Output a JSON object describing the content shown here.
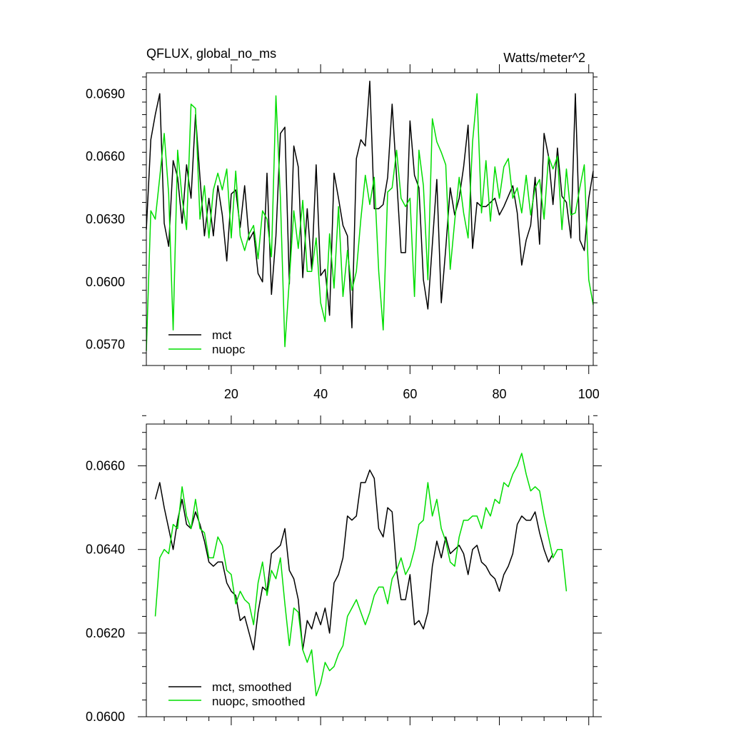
{
  "colors": {
    "mct": "#000000",
    "nuopc": "#00dd00",
    "background": "#ffffff"
  },
  "chart_data": [
    {
      "type": "line",
      "title": "QFLUX, global_no_ms",
      "units": "Watts/meter^2",
      "xlim": [
        1,
        101
      ],
      "ylim": [
        0.056,
        0.07
      ],
      "xticks": [
        20,
        40,
        60,
        80,
        100
      ],
      "yticks": [
        0.057,
        0.06,
        0.063,
        0.066,
        0.069
      ],
      "ytick_labels": [
        "0.0570",
        "0.0600",
        "0.0630",
        "0.0660",
        "0.0690"
      ],
      "legend_position": "bottom-left",
      "series": [
        {
          "name": "mct",
          "color": "#000000",
          "x_start": 1,
          "values": [
            0.0625,
            0.0668,
            0.068,
            0.069,
            0.0628,
            0.0617,
            0.0658,
            0.065,
            0.0628,
            0.0656,
            0.064,
            0.068,
            0.065,
            0.0622,
            0.064,
            0.0622,
            0.0646,
            0.0632,
            0.061,
            0.0642,
            0.0644,
            0.0626,
            0.0646,
            0.062,
            0.0624,
            0.0604,
            0.06,
            0.0652,
            0.0594,
            0.0622,
            0.0671,
            0.0674,
            0.0599,
            0.0665,
            0.0655,
            0.0602,
            0.0635,
            0.0606,
            0.0656,
            0.0603,
            0.0606,
            0.0584,
            0.0652,
            0.064,
            0.0627,
            0.0622,
            0.0578,
            0.0659,
            0.0668,
            0.0665,
            0.0696,
            0.0635,
            0.0635,
            0.0637,
            0.065,
            0.0685,
            0.065,
            0.0614,
            0.0614,
            0.0677,
            0.0651,
            0.0645,
            0.0601,
            0.0587,
            0.0618,
            0.0649,
            0.059,
            0.0616,
            0.0645,
            0.0632,
            0.064,
            0.0655,
            0.0675,
            0.0616,
            0.0638,
            0.0636,
            0.0636,
            0.0638,
            0.064,
            0.0632,
            0.0636,
            0.0641,
            0.0646,
            0.0633,
            0.0608,
            0.062,
            0.0627,
            0.065,
            0.0618,
            0.0671,
            0.066,
            0.0637,
            0.0664,
            0.0641,
            0.0638,
            0.0621,
            0.069,
            0.062,
            0.0615,
            0.064,
            0.0653
          ]
        },
        {
          "name": "nuopc",
          "color": "#00dd00",
          "x_start": 1,
          "values": [
            0.0567,
            0.0634,
            0.063,
            0.065,
            0.0671,
            0.0642,
            0.0577,
            0.0663,
            0.064,
            0.0625,
            0.0685,
            0.0683,
            0.063,
            0.0646,
            0.0621,
            0.0644,
            0.0652,
            0.0644,
            0.0654,
            0.0621,
            0.0653,
            0.0622,
            0.0615,
            0.0623,
            0.0627,
            0.0611,
            0.0634,
            0.063,
            0.0612,
            0.0689,
            0.064,
            0.0569,
            0.0601,
            0.0634,
            0.0616,
            0.0639,
            0.0605,
            0.0605,
            0.0621,
            0.059,
            0.0581,
            0.0623,
            0.0597,
            0.0636,
            0.0593,
            0.0615,
            0.0596,
            0.0605,
            0.063,
            0.0651,
            0.0637,
            0.065,
            0.0605,
            0.0577,
            0.0643,
            0.0645,
            0.0663,
            0.064,
            0.0636,
            0.064,
            0.0593,
            0.0663,
            0.0646,
            0.0601,
            0.0678,
            0.0667,
            0.0662,
            0.0656,
            0.0606,
            0.0629,
            0.065,
            0.0633,
            0.0621,
            0.0667,
            0.069,
            0.0633,
            0.0658,
            0.0629,
            0.0655,
            0.064,
            0.0655,
            0.0659,
            0.064,
            0.0645,
            0.0633,
            0.0651,
            0.0632,
            0.0645,
            0.0649,
            0.063,
            0.066,
            0.0654,
            0.066,
            0.0625,
            0.0654,
            0.0632,
            0.0633,
            0.0645,
            0.0656,
            0.0601,
            0.0589
          ]
        }
      ]
    },
    {
      "type": "line",
      "title": "",
      "xlim": [
        1,
        101
      ],
      "ylim": [
        0.06,
        0.067
      ],
      "xticks": [
        20,
        40,
        60,
        80,
        100
      ],
      "yticks": [
        0.06,
        0.062,
        0.064,
        0.066
      ],
      "ytick_labels": [
        "0.0600",
        "0.0620",
        "0.0640",
        "0.0660"
      ],
      "legend_position": "bottom-left",
      "series": [
        {
          "name": "mct, smoothed",
          "color": "#000000",
          "x_start": 3,
          "values": [
            0.0652,
            0.0656,
            0.065,
            0.0645,
            0.064,
            0.0647,
            0.0652,
            0.0646,
            0.0645,
            0.0649,
            0.0646,
            0.0642,
            0.0637,
            0.0636,
            0.0637,
            0.0637,
            0.0632,
            0.063,
            0.0629,
            0.0623,
            0.0624,
            0.062,
            0.0616,
            0.0625,
            0.0631,
            0.063,
            0.0639,
            0.064,
            0.0641,
            0.0645,
            0.0635,
            0.0633,
            0.0628,
            0.0616,
            0.0623,
            0.0621,
            0.0625,
            0.0622,
            0.0626,
            0.062,
            0.0632,
            0.0634,
            0.0638,
            0.0648,
            0.0647,
            0.0648,
            0.0656,
            0.0656,
            0.0659,
            0.0657,
            0.0645,
            0.0643,
            0.065,
            0.0649,
            0.0635,
            0.0628,
            0.0628,
            0.0634,
            0.0622,
            0.0623,
            0.0621,
            0.0625,
            0.0636,
            0.0642,
            0.0638,
            0.0643,
            0.0639,
            0.064,
            0.0641,
            0.0639,
            0.0634,
            0.064,
            0.0641,
            0.0637,
            0.0636,
            0.0634,
            0.0633,
            0.063,
            0.0634,
            0.0636,
            0.0639,
            0.0646,
            0.0648,
            0.0647,
            0.0647,
            0.0649,
            0.0644,
            0.064,
            0.0637,
            0.0639
          ]
        },
        {
          "name": "nuopc, smoothed",
          "color": "#00dd00",
          "x_start": 3,
          "values": [
            0.0624,
            0.0638,
            0.064,
            0.0639,
            0.0646,
            0.0645,
            0.0655,
            0.0648,
            0.0645,
            0.0652,
            0.0645,
            0.0644,
            0.0638,
            0.0638,
            0.0643,
            0.0641,
            0.0635,
            0.0634,
            0.0627,
            0.063,
            0.0628,
            0.0627,
            0.0622,
            0.0632,
            0.0637,
            0.0629,
            0.0635,
            0.0633,
            0.0638,
            0.0627,
            0.0617,
            0.0626,
            0.0625,
            0.0616,
            0.0613,
            0.0616,
            0.0605,
            0.0608,
            0.0613,
            0.0611,
            0.0612,
            0.0615,
            0.0617,
            0.0624,
            0.0626,
            0.0628,
            0.0625,
            0.0622,
            0.0625,
            0.0629,
            0.0631,
            0.0631,
            0.0627,
            0.0633,
            0.0635,
            0.0638,
            0.0634,
            0.0636,
            0.064,
            0.0646,
            0.0647,
            0.0656,
            0.0648,
            0.0652,
            0.0645,
            0.0642,
            0.0637,
            0.0636,
            0.0643,
            0.0647,
            0.0647,
            0.0648,
            0.0648,
            0.0645,
            0.065,
            0.0648,
            0.0652,
            0.0651,
            0.0656,
            0.0655,
            0.0658,
            0.066,
            0.0663,
            0.0658,
            0.0654,
            0.0655,
            0.0654,
            0.0648,
            0.0643,
            0.0638,
            0.064,
            0.064,
            0.063
          ]
        }
      ]
    }
  ]
}
